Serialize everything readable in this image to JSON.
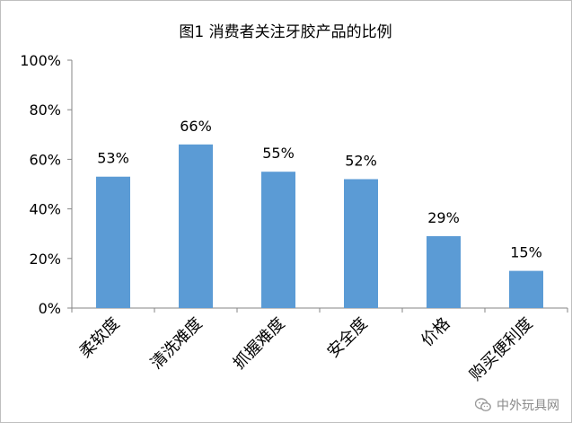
{
  "chart_data": {
    "type": "bar",
    "title": "图1 消费者关注牙胶产品的比例",
    "categories": [
      "柔软度",
      "清洗难度",
      "抓握难度",
      "安全度",
      "价格",
      "购买便利度"
    ],
    "values": [
      53,
      66,
      55,
      52,
      29,
      15
    ],
    "value_labels": [
      "53%",
      "66%",
      "55%",
      "52%",
      "29%",
      "15%"
    ],
    "xlabel": "",
    "ylabel": "",
    "ylim": [
      0,
      100
    ],
    "yticks": [
      "0%",
      "20%",
      "40%",
      "60%",
      "80%",
      "100%"
    ],
    "grid": false,
    "legend": "none",
    "bar_color": "#5b9bd5"
  },
  "watermark": {
    "text": "中外玩具网",
    "icon": "wechat-icon"
  }
}
